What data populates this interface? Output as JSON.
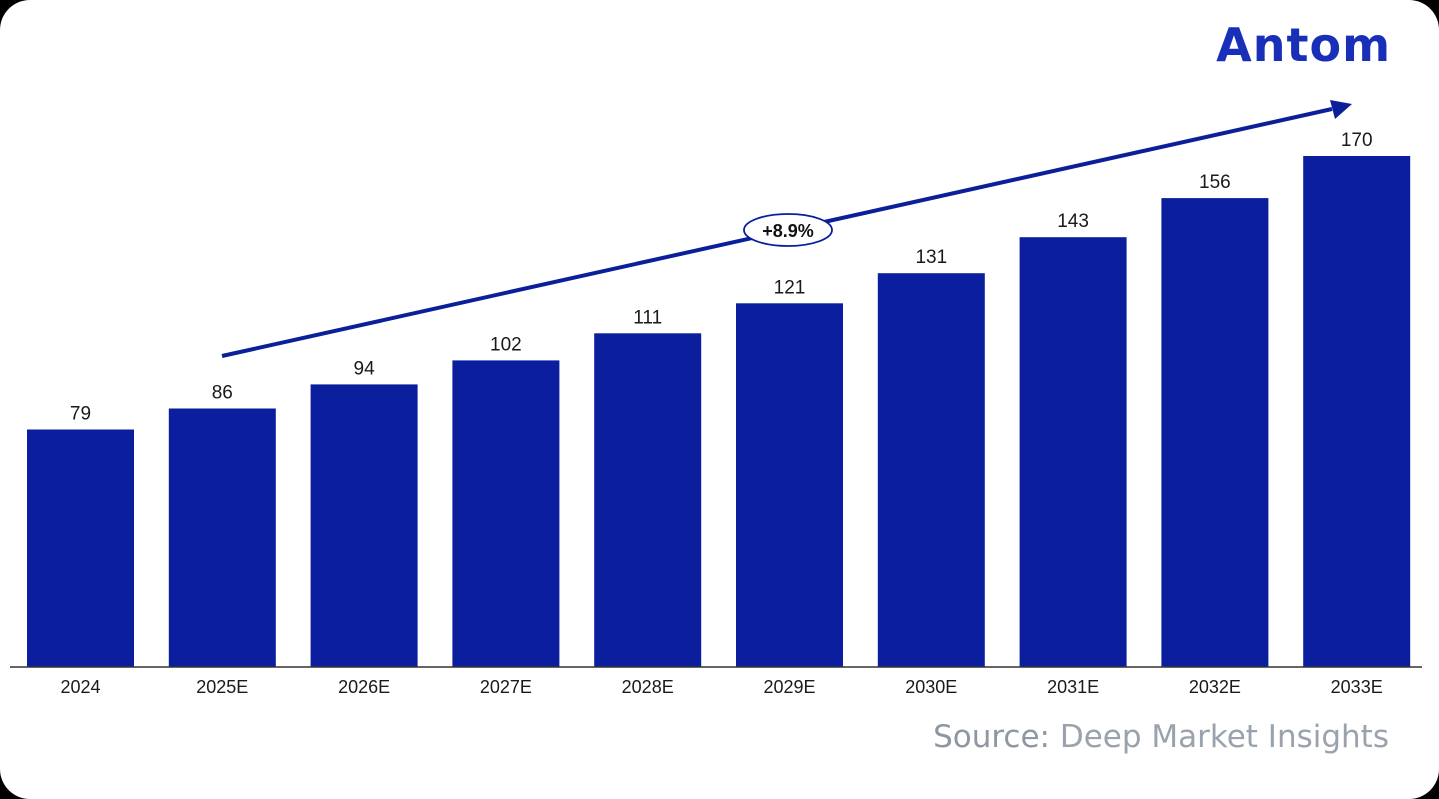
{
  "brand": {
    "logo_text": "Antom",
    "color": "#1a2fb8"
  },
  "source": {
    "label": "Source:",
    "text": "Deep Market Insights"
  },
  "colors": {
    "bar": "#0a1e9e",
    "arrow": "#0b1f99",
    "text": "#1a1a1a",
    "source": "#8e98a3"
  },
  "chart_data": {
    "type": "bar",
    "categories": [
      "2024",
      "2025E",
      "2026E",
      "2027E",
      "2028E",
      "2029E",
      "2030E",
      "2031E",
      "2032E",
      "2033E"
    ],
    "values": [
      79,
      86,
      94,
      102,
      111,
      121,
      131,
      143,
      156,
      170
    ],
    "title": "",
    "xlabel": "",
    "ylabel": "",
    "ylim": [
      0,
      170
    ],
    "grid": false,
    "data_labels": true,
    "annotation": {
      "text": "+8.9%",
      "type": "growth-arrow",
      "from_category": "2025E",
      "to_category": "2033E"
    }
  }
}
